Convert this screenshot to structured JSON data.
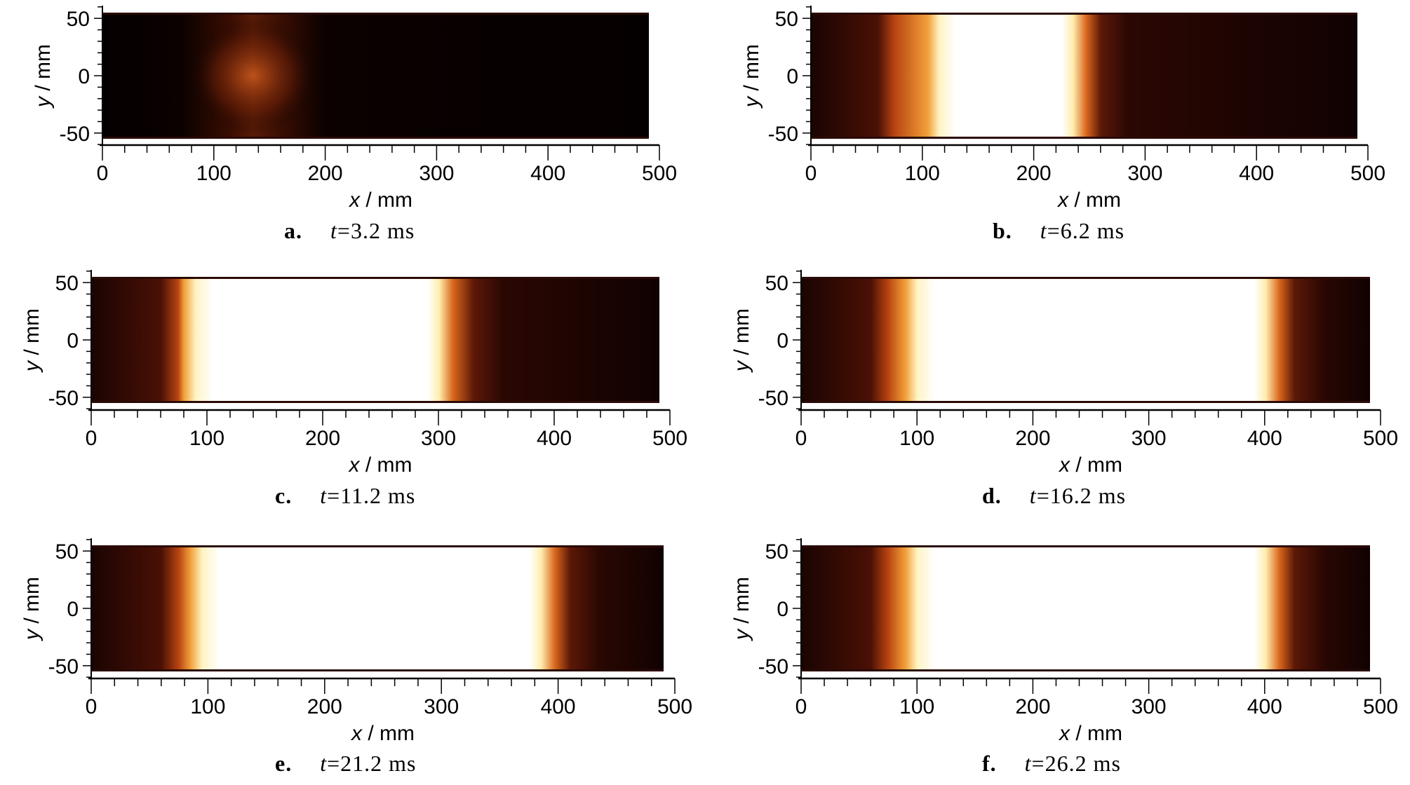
{
  "figure": {
    "x_axis": {
      "label_var": "x",
      "label_unit": " / mm",
      "ticks": [
        0,
        100,
        200,
        300,
        400,
        500
      ],
      "range": [
        0,
        500
      ]
    },
    "y_axis": {
      "label_var": "y",
      "label_unit": " / mm",
      "ticks": [
        50,
        0,
        -50
      ],
      "range": [
        -60,
        60
      ]
    },
    "colormap": "black-to-white flame intensity (hot)",
    "panels": [
      {
        "letter": "a.",
        "t_var": "t",
        "t_value": "=3.2 ms",
        "flame": {
          "type": "kernel",
          "center_x": 135,
          "extent_x": [
            70,
            200
          ]
        }
      },
      {
        "letter": "b.",
        "t_var": "t",
        "t_value": "=6.2 ms",
        "flame": {
          "type": "band",
          "bright_x": [
            115,
            235
          ],
          "glow_x": [
            60,
            260
          ]
        }
      },
      {
        "letter": "c.",
        "t_var": "t",
        "t_value": "=11.2 ms",
        "flame": {
          "type": "band",
          "bright_x": [
            90,
            300
          ],
          "glow_x": [
            60,
            330
          ]
        }
      },
      {
        "letter": "d.",
        "t_var": "t",
        "t_value": "=16.2 ms",
        "flame": {
          "type": "band",
          "bright_x": [
            100,
            400
          ],
          "glow_x": [
            60,
            425
          ]
        }
      },
      {
        "letter": "e.",
        "t_var": "t",
        "t_value": "=21.2 ms",
        "flame": {
          "type": "band",
          "bright_x": [
            95,
            385
          ],
          "glow_x": [
            60,
            410
          ]
        }
      },
      {
        "letter": "f.",
        "t_var": "t",
        "t_value": "=26.2 ms",
        "flame": {
          "type": "band",
          "bright_x": [
            100,
            400
          ],
          "glow_x": [
            60,
            425
          ]
        }
      }
    ]
  }
}
